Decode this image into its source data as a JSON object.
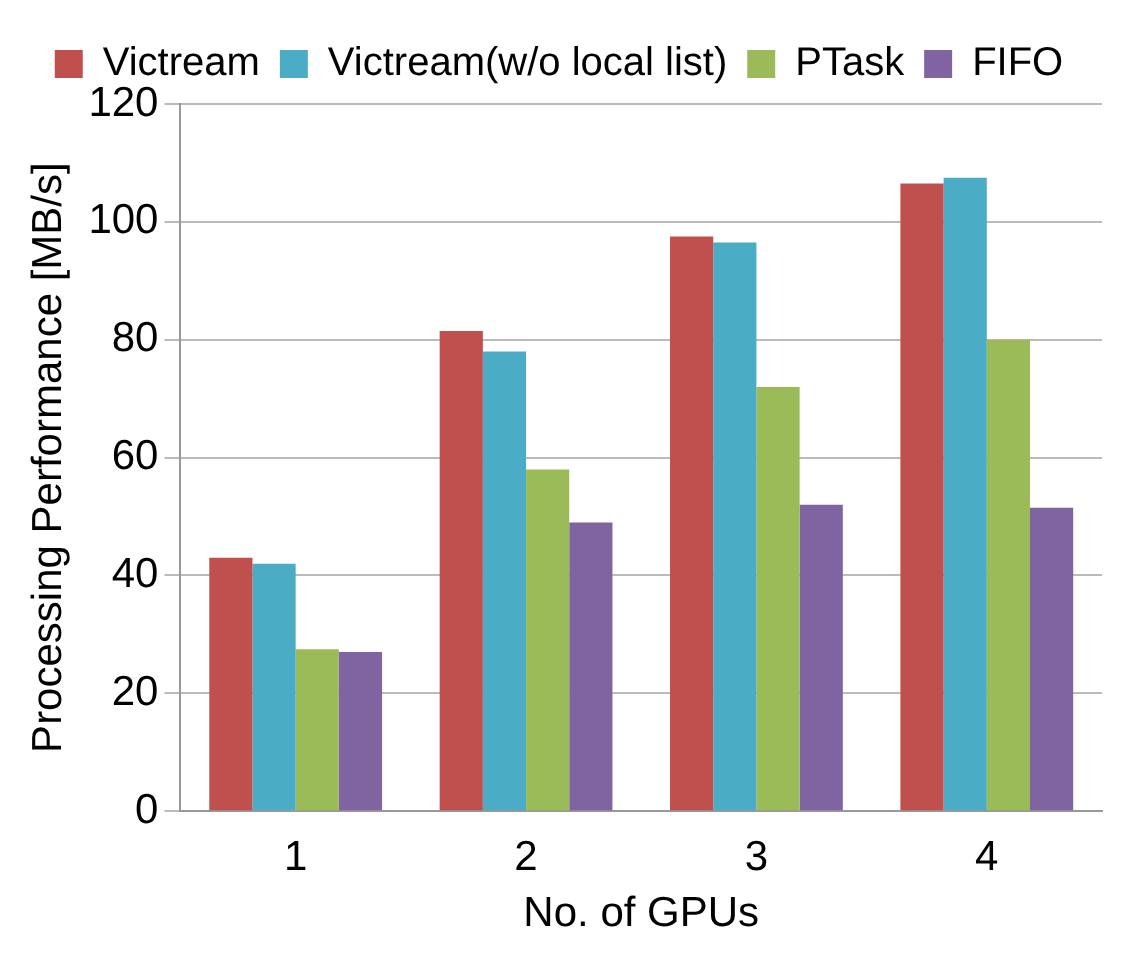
{
  "chart_data": {
    "type": "bar",
    "xlabel": "No. of GPUs",
    "ylabel": "Processing Performance [MB/s]",
    "categories": [
      "1",
      "2",
      "3",
      "4"
    ],
    "series": [
      {
        "name": "Victream",
        "color": "#c0504d",
        "values": [
          43,
          81.5,
          97.5,
          106.5
        ]
      },
      {
        "name": "Victream(w/o local list)",
        "color": "#4bacc6",
        "values": [
          42,
          78,
          96.5,
          107.5
        ]
      },
      {
        "name": "PTask",
        "color": "#9bbb59",
        "values": [
          27.5,
          58,
          72,
          80
        ]
      },
      {
        "name": "FIFO",
        "color": "#8064a2",
        "values": [
          27,
          49,
          52,
          51.5
        ]
      }
    ],
    "ylim": [
      0,
      120
    ],
    "yticks": [
      0,
      20,
      40,
      60,
      80,
      100,
      120
    ],
    "grid": "y",
    "legend": "top"
  }
}
